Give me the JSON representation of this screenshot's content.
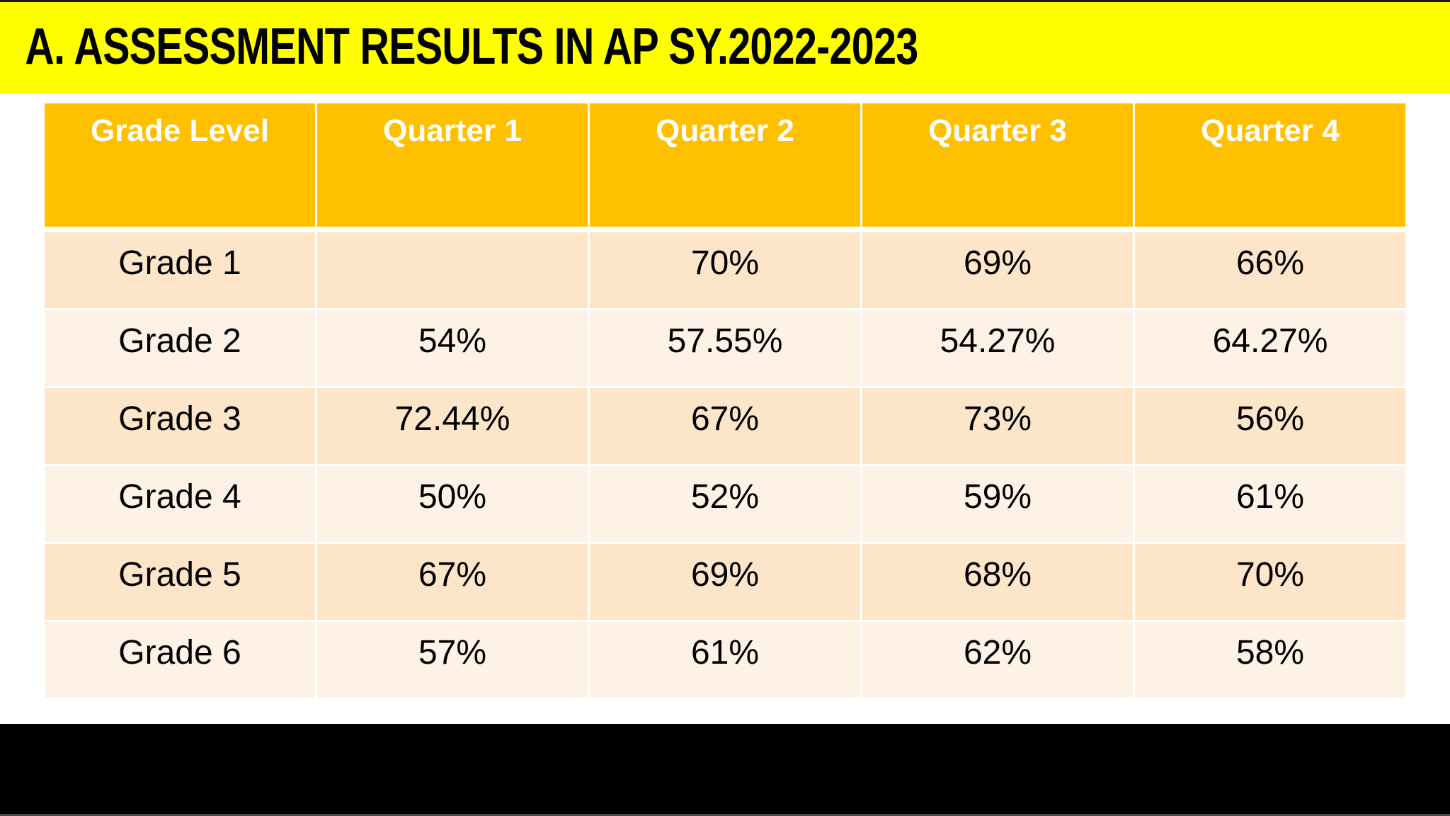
{
  "slide": {
    "title": "A. ASSESSMENT RESULTS IN AP SY.2022-2023"
  },
  "colors": {
    "title_bg": "#FFFF00",
    "title_text": "#000000",
    "header_bg": "#FFC000",
    "header_text": "#FFFFFF",
    "row_odd_bg": "#FCE5C9",
    "row_even_bg": "#FDF2E5",
    "cell_text": "#000000",
    "divider": "#FFFFFF",
    "footer_bg": "#000000",
    "page_bg": "#FFFFFF"
  },
  "table": {
    "headers": [
      "Grade Level",
      "Quarter 1",
      "Quarter 2",
      "Quarter 3",
      "Quarter 4"
    ],
    "rows": [
      [
        "Grade 1",
        "",
        "70%",
        "69%",
        "66%"
      ],
      [
        "Grade 2",
        "54%",
        "57.55%",
        "54.27%",
        "64.27%"
      ],
      [
        "Grade 3",
        "72.44%",
        "67%",
        "73%",
        "56%"
      ],
      [
        "Grade 4",
        "50%",
        "52%",
        "59%",
        "61%"
      ],
      [
        "Grade 5",
        "67%",
        "69%",
        "68%",
        "70%"
      ],
      [
        "Grade 6",
        "57%",
        "61%",
        "62%",
        "58%"
      ]
    ]
  },
  "chart_data": {
    "type": "table",
    "title": "A. ASSESSMENT RESULTS IN AP SY.2022-2023",
    "columns": [
      "Grade Level",
      "Quarter 1",
      "Quarter 2",
      "Quarter 3",
      "Quarter 4"
    ],
    "rows": [
      [
        "Grade 1",
        null,
        70,
        69,
        66
      ],
      [
        "Grade 2",
        54,
        57.55,
        54.27,
        64.27
      ],
      [
        "Grade 3",
        72.44,
        67,
        73,
        56
      ],
      [
        "Grade 4",
        50,
        52,
        59,
        61
      ],
      [
        "Grade 5",
        67,
        69,
        68,
        70
      ],
      [
        "Grade 6",
        57,
        61,
        62,
        58
      ]
    ],
    "unit": "%"
  }
}
